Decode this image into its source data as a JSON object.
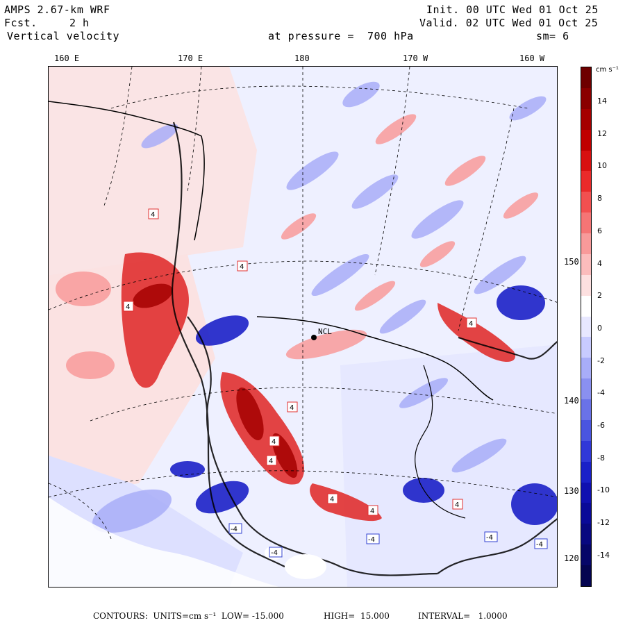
{
  "header": {
    "model": "AMPS 2.67-km WRF",
    "fcst_label": "Fcst.",
    "fcst_value": "2 h",
    "field": "Vertical velocity",
    "init": "Init. 00 UTC Wed 01 Oct 25",
    "valid": "Valid. 02 UTC Wed 01 Oct 25",
    "level": "at pressure =  700 hPa",
    "smoothing": "sm= 6"
  },
  "map": {
    "lon_labels": [
      "160 E",
      "170 E",
      "180",
      "170 W",
      "160 W"
    ],
    "lat_labels": [
      "150 W",
      "140 W",
      "130 W",
      "120 W"
    ],
    "station_label": "NCL",
    "contour_labels": [
      "4",
      "4",
      "4",
      "4",
      "4",
      "4",
      "4",
      "4",
      "4",
      "4",
      "-4",
      "-4",
      "-4",
      "-4",
      "-4"
    ],
    "positive_color": "#e03030",
    "negative_color": "#3040d0"
  },
  "colorbar": {
    "unit": "cm s⁻¹",
    "ticks": [
      "14",
      "12",
      "10",
      "8",
      "6",
      "4",
      "2",
      "0",
      "-2",
      "-4",
      "-6",
      "-8",
      "-10",
      "-12",
      "-14"
    ],
    "colors": [
      "#6e0000",
      "#8a0000",
      "#a50000",
      "#c00000",
      "#d81010",
      "#ea2a2a",
      "#f25050",
      "#f57575",
      "#f89a9a",
      "#fbbcbc",
      "#fde0e0",
      "#ffffff",
      "#e8e8ff",
      "#c8cbff",
      "#a8adf8",
      "#8a90f0",
      "#6a72e8",
      "#4a55e0",
      "#3038d8",
      "#1a20c8",
      "#1010b0",
      "#0a0a98",
      "#080880",
      "#060668",
      "#040450"
    ]
  },
  "footer": {
    "contours": "CONTOURS:  UNITS=cm s⁻¹  LOW= -15.000",
    "high": "HIGH=  15.000",
    "interval": "INTERVAL=   1.0000"
  }
}
